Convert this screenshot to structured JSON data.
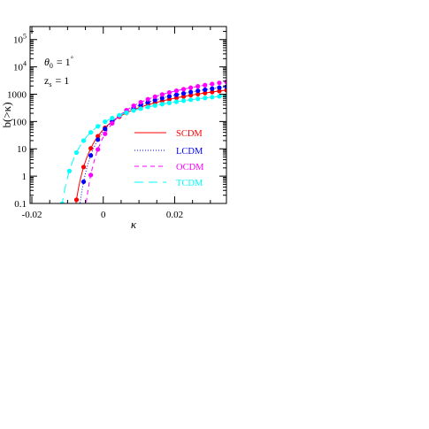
{
  "chart_data": {
    "type": "scatter",
    "title": "",
    "xlabel": "κ",
    "ylabel": "b(>κ)",
    "x_ticks": [
      "-0.02",
      "0",
      "0.02"
    ],
    "x_tick_values": [
      -0.02,
      0,
      0.02
    ],
    "y_ticks": [
      {
        "base": "0.1",
        "exp": ""
      },
      {
        "base": "1",
        "exp": ""
      },
      {
        "base": "10",
        "exp": ""
      },
      {
        "base": "100",
        "exp": ""
      },
      {
        "base": "1000",
        "exp": ""
      },
      {
        "base": "10",
        "exp": "4"
      },
      {
        "base": "10",
        "exp": "5"
      }
    ],
    "y_tick_values": [
      0.1,
      1,
      10,
      100,
      1000,
      10000,
      100000
    ],
    "xlim": [
      -0.0205,
      0.0345
    ],
    "ylim": [
      0.1,
      300000
    ],
    "y_scale": "log",
    "annotations": {
      "theta_symbol": "θ",
      "theta_sub": "0",
      "theta_rhs": "=  1",
      "theta_unit": "°",
      "z_symbol": "z",
      "z_sub": "s",
      "z_rhs": "=  1"
    },
    "legend_position": "center-right",
    "series": [
      {
        "name": "SCDM",
        "color": "#ff0000",
        "line_style": "solid",
        "c": 0.01,
        "a": 150,
        "s": 0.7,
        "x_points": [
          -0.0115,
          -0.0095,
          -0.0075,
          -0.0055,
          -0.0035,
          -0.0015,
          0.0005,
          0.0025,
          0.0045,
          0.0065,
          0.0085,
          0.0105,
          0.0125,
          0.0145,
          0.0165,
          0.0185,
          0.0205,
          0.0225,
          0.0245,
          0.0265,
          0.0285,
          0.0305,
          0.0325,
          0.0345
        ]
      },
      {
        "name": "LCDM",
        "color": "#0000ff",
        "line_style": "dotted",
        "c": 0.0087,
        "a": 210,
        "s": 0.7,
        "x_points": [
          -0.0095,
          -0.0075,
          -0.0055,
          -0.0035,
          -0.0015,
          0.0005,
          0.0025,
          0.0045,
          0.0065,
          0.0085,
          0.0105,
          0.0125,
          0.0145,
          0.0165,
          0.0185,
          0.0205,
          0.0225,
          0.0245,
          0.0265,
          0.0285,
          0.0305,
          0.0325,
          0.0345
        ]
      },
      {
        "name": "OCDM",
        "color": "#ff00ff",
        "line_style": "dashed",
        "c": 0.0068,
        "a": 320,
        "s": 0.72,
        "x_points": [
          -0.0075,
          -0.0055,
          -0.0035,
          -0.0015,
          0.0005,
          0.0025,
          0.0045,
          0.0065,
          0.0085,
          0.0105,
          0.0125,
          0.0145,
          0.0165,
          0.0185,
          0.0205,
          0.0225,
          0.0245,
          0.0265,
          0.0285,
          0.0305,
          0.0325,
          0.0345
        ]
      },
      {
        "name": "TCDM",
        "color": "#00ffff",
        "line_style": "long-dashed",
        "c": 0.014,
        "a": 108,
        "s": 0.62,
        "x_points": [
          -0.0155,
          -0.0135,
          -0.0115,
          -0.0095,
          -0.0075,
          -0.0055,
          -0.0035,
          -0.0015,
          0.0005,
          0.0025,
          0.0045,
          0.0065,
          0.0085,
          0.0105,
          0.0125,
          0.0145,
          0.0165,
          0.0185,
          0.0205,
          0.0225,
          0.0245,
          0.0265,
          0.0285,
          0.0305,
          0.0325,
          0.0345
        ]
      }
    ]
  }
}
